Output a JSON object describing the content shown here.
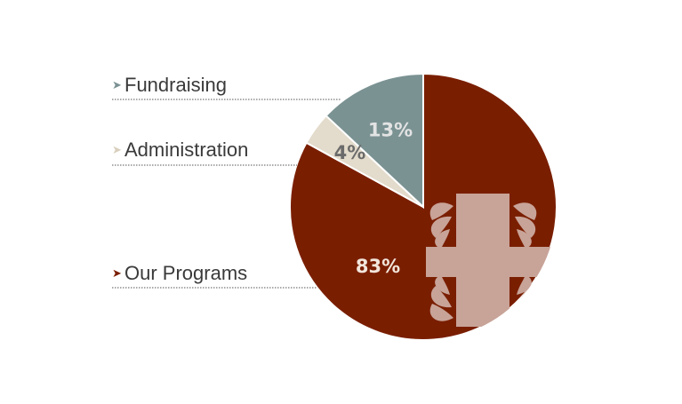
{
  "chart_data": {
    "type": "pie",
    "title": "",
    "slices": [
      {
        "label": "Our Programs",
        "value": 83,
        "display": "83%",
        "color": "#7a1e00",
        "text_color": "#f2e6dc"
      },
      {
        "label": "Administration",
        "value": 4,
        "display": "4%",
        "color": "#e3dbcb",
        "text_color": "#6b6b6b"
      },
      {
        "label": "Fundraising",
        "value": 13,
        "display": "13%",
        "color": "#7b9293",
        "text_color": "#e3e3e3"
      }
    ],
    "start_angle_deg": 0,
    "direction": "clockwise",
    "legend_order": [
      "Fundraising",
      "Administration",
      "Our Programs"
    ],
    "legend_placement": "left"
  },
  "emblem": {
    "name": "cross-emblem-icon",
    "color": "#c8a398"
  },
  "colors": {
    "leader_line": "#555555",
    "background": "#ffffff"
  }
}
